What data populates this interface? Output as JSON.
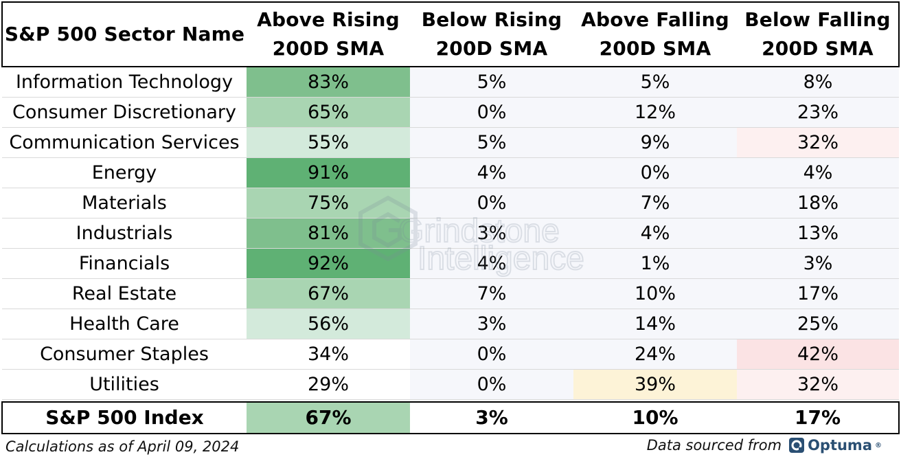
{
  "table": {
    "headers": [
      "S&P 500 Sector Name",
      "Above Rising\n200D SMA",
      "Below Rising\n200D SMA",
      "Above Falling\n200D SMA",
      "Below Falling\n200D SMA"
    ],
    "rows": [
      {
        "sector": "Information Technology",
        "above_rising": "83%",
        "below_rising": "5%",
        "above_falling": "5%",
        "below_falling": "8%"
      },
      {
        "sector": "Consumer Discretionary",
        "above_rising": "65%",
        "below_rising": "0%",
        "above_falling": "12%",
        "below_falling": "23%"
      },
      {
        "sector": "Communication Services",
        "above_rising": "55%",
        "below_rising": "5%",
        "above_falling": "9%",
        "below_falling": "32%"
      },
      {
        "sector": "Energy",
        "above_rising": "91%",
        "below_rising": "4%",
        "above_falling": "0%",
        "below_falling": "4%"
      },
      {
        "sector": "Materials",
        "above_rising": "75%",
        "below_rising": "0%",
        "above_falling": "7%",
        "below_falling": "18%"
      },
      {
        "sector": "Industrials",
        "above_rising": "81%",
        "below_rising": "3%",
        "above_falling": "4%",
        "below_falling": "13%"
      },
      {
        "sector": "Financials",
        "above_rising": "92%",
        "below_rising": "4%",
        "above_falling": "1%",
        "below_falling": "3%"
      },
      {
        "sector": "Real Estate",
        "above_rising": "67%",
        "below_rising": "7%",
        "above_falling": "10%",
        "below_falling": "17%"
      },
      {
        "sector": "Health Care",
        "above_rising": "56%",
        "below_rising": "3%",
        "above_falling": "14%",
        "below_falling": "25%"
      },
      {
        "sector": "Consumer Staples",
        "above_rising": "34%",
        "below_rising": "0%",
        "above_falling": "24%",
        "below_falling": "42%"
      },
      {
        "sector": "Utilities",
        "above_rising": "29%",
        "below_rising": "0%",
        "above_falling": "39%",
        "below_falling": "32%"
      }
    ],
    "total": {
      "sector": "S&P 500 Index",
      "above_rising": "67%",
      "below_rising": "3%",
      "above_falling": "10%",
      "below_falling": "17%"
    }
  },
  "colors": {
    "green_strong": "#5fb174",
    "green_mid": "#7fbf8d",
    "green_light": "#a9d5b2",
    "green_pale": "#d3eadb",
    "red_pale": "#fbe3e4",
    "red_faint": "#fdf0f0",
    "yellow_pale": "#fdf3d7",
    "neutral_faint": "#f6f7fb"
  },
  "watermark": {
    "line1": "Grindstone",
    "line2": "Intelligence"
  },
  "footer": {
    "left": "Calculations as of April 09, 2024",
    "right_prefix": "Data sourced from",
    "logo_text": "Optuma",
    "logo_mark": "®"
  },
  "chart_data": {
    "type": "table",
    "columns": [
      "S&P 500 Sector Name",
      "Above Rising 200D SMA",
      "Below Rising 200D SMA",
      "Above Falling 200D SMA",
      "Below Falling 200D SMA"
    ],
    "categories": [
      "Information Technology",
      "Consumer Discretionary",
      "Communication Services",
      "Energy",
      "Materials",
      "Industrials",
      "Financials",
      "Real Estate",
      "Health Care",
      "Consumer Staples",
      "Utilities",
      "S&P 500 Index"
    ],
    "series": [
      {
        "name": "Above Rising 200D SMA",
        "values": [
          83,
          65,
          55,
          91,
          75,
          81,
          92,
          67,
          56,
          34,
          29,
          67
        ]
      },
      {
        "name": "Below Rising 200D SMA",
        "values": [
          5,
          0,
          5,
          4,
          0,
          3,
          4,
          7,
          3,
          0,
          0,
          3
        ]
      },
      {
        "name": "Above Falling 200D SMA",
        "values": [
          5,
          12,
          9,
          0,
          7,
          4,
          1,
          10,
          14,
          24,
          39,
          10
        ]
      },
      {
        "name": "Below Falling 200D SMA",
        "values": [
          8,
          23,
          32,
          4,
          18,
          13,
          3,
          17,
          25,
          42,
          32,
          17
        ]
      }
    ]
  }
}
